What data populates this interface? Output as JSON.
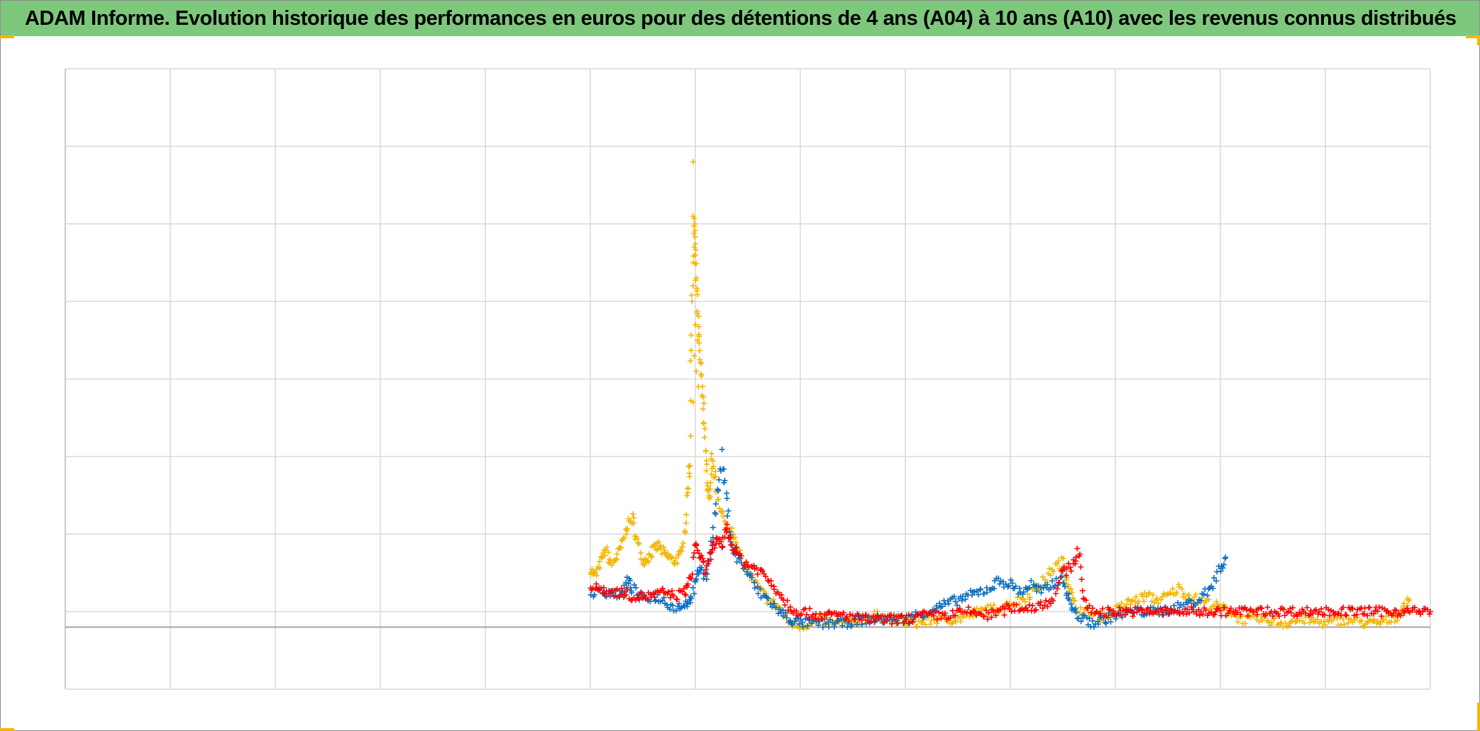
{
  "header": {
    "title": "ADAM Informe. Evolution historique des performances en euros pour des détentions de 4 ans (A04) à 10 ans (A10) avec les revenus connus distribués"
  },
  "chart_data": {
    "type": "scatter",
    "title": "ADAM Informe. Evolution historique des performances en euros pour des détentions de 4 ans (A04) à 10 ans (A10) avec les revenus connus distribués",
    "xlabel": "",
    "ylabel": "",
    "xlim": [
      0,
      13
    ],
    "ylim": [
      -0.8,
      7.2
    ],
    "grid": true,
    "legend": "none",
    "marker": "+",
    "colors": {
      "yellow": "#f2b705",
      "blue": "#0f6fbf",
      "red": "#ff0000"
    },
    "series": [
      {
        "color": "yellow",
        "points": [
          [
            5.0,
            0.75
          ],
          [
            5.05,
            0.65
          ],
          [
            5.1,
            0.85
          ],
          [
            5.15,
            1.0
          ],
          [
            5.2,
            0.8
          ],
          [
            5.25,
            0.9
          ],
          [
            5.3,
            1.05
          ],
          [
            5.35,
            1.3
          ],
          [
            5.4,
            1.4
          ],
          [
            5.45,
            1.1
          ],
          [
            5.5,
            0.85
          ],
          [
            5.55,
            0.9
          ],
          [
            5.6,
            1.0
          ],
          [
            5.65,
            1.05
          ],
          [
            5.7,
            0.95
          ],
          [
            5.75,
            0.9
          ],
          [
            5.8,
            0.85
          ],
          [
            5.85,
            0.9
          ],
          [
            5.9,
            1.2
          ],
          [
            5.93,
            1.8
          ],
          [
            5.95,
            2.2
          ],
          [
            5.97,
            4.3
          ],
          [
            5.99,
            5.3
          ],
          [
            6.0,
            4.7
          ],
          [
            6.02,
            4.1
          ],
          [
            6.04,
            3.6
          ],
          [
            6.06,
            3.2
          ],
          [
            6.08,
            2.8
          ],
          [
            6.1,
            2.2
          ],
          [
            6.12,
            1.8
          ],
          [
            6.14,
            1.6
          ],
          [
            6.16,
            2.2
          ],
          [
            6.2,
            1.8
          ],
          [
            6.25,
            1.5
          ],
          [
            6.3,
            1.2
          ],
          [
            6.35,
            1.3
          ],
          [
            6.4,
            1.0
          ],
          [
            6.5,
            0.7
          ],
          [
            6.6,
            0.5
          ],
          [
            6.7,
            0.35
          ],
          [
            6.8,
            0.25
          ],
          [
            6.9,
            0.05
          ],
          [
            7.0,
            0.02
          ],
          [
            7.1,
            0.05
          ],
          [
            7.2,
            0.1
          ],
          [
            7.3,
            0.05
          ],
          [
            7.5,
            0.05
          ],
          [
            7.7,
            0.15
          ],
          [
            7.9,
            0.1
          ],
          [
            8.1,
            0.05
          ],
          [
            8.3,
            0.1
          ],
          [
            8.5,
            0.1
          ],
          [
            8.7,
            0.2
          ],
          [
            8.9,
            0.25
          ],
          [
            9.1,
            0.35
          ],
          [
            9.3,
            0.55
          ],
          [
            9.4,
            0.75
          ],
          [
            9.5,
            0.85
          ],
          [
            9.55,
            0.6
          ],
          [
            9.6,
            0.3
          ],
          [
            9.7,
            0.2
          ],
          [
            9.8,
            0.15
          ],
          [
            9.9,
            0.15
          ],
          [
            10.0,
            0.2
          ],
          [
            10.1,
            0.3
          ],
          [
            10.2,
            0.35
          ],
          [
            10.3,
            0.4
          ],
          [
            10.4,
            0.35
          ],
          [
            10.5,
            0.4
          ],
          [
            10.6,
            0.5
          ],
          [
            10.7,
            0.4
          ],
          [
            10.8,
            0.35
          ],
          [
            10.9,
            0.3
          ],
          [
            11.0,
            0.25
          ],
          [
            11.1,
            0.2
          ],
          [
            11.2,
            0.1
          ],
          [
            11.4,
            0.1
          ],
          [
            11.6,
            0.05
          ],
          [
            11.8,
            0.1
          ],
          [
            12.0,
            0.05
          ],
          [
            12.2,
            0.1
          ],
          [
            12.4,
            0.05
          ],
          [
            12.5,
            0.05
          ],
          [
            12.6,
            0.1
          ],
          [
            12.7,
            0.15
          ],
          [
            12.75,
            0.25
          ],
          [
            12.8,
            0.35
          ]
        ]
      },
      {
        "color": "blue",
        "points": [
          [
            5.0,
            0.45
          ],
          [
            5.1,
            0.45
          ],
          [
            5.2,
            0.45
          ],
          [
            5.3,
            0.4
          ],
          [
            5.35,
            0.6
          ],
          [
            5.4,
            0.5
          ],
          [
            5.5,
            0.35
          ],
          [
            5.6,
            0.4
          ],
          [
            5.7,
            0.35
          ],
          [
            5.8,
            0.25
          ],
          [
            5.9,
            0.3
          ],
          [
            5.95,
            0.35
          ],
          [
            6.0,
            0.55
          ],
          [
            6.05,
            0.8
          ],
          [
            6.1,
            0.6
          ],
          [
            6.15,
            1.05
          ],
          [
            6.2,
            1.6
          ],
          [
            6.25,
            2.2
          ],
          [
            6.3,
            1.6
          ],
          [
            6.35,
            1.05
          ],
          [
            6.4,
            0.9
          ],
          [
            6.5,
            0.7
          ],
          [
            6.6,
            0.45
          ],
          [
            6.7,
            0.35
          ],
          [
            6.8,
            0.2
          ],
          [
            6.9,
            0.1
          ],
          [
            7.0,
            0.05
          ],
          [
            7.2,
            0.05
          ],
          [
            7.4,
            0.05
          ],
          [
            7.6,
            0.1
          ],
          [
            7.8,
            0.1
          ],
          [
            8.0,
            0.1
          ],
          [
            8.2,
            0.2
          ],
          [
            8.4,
            0.3
          ],
          [
            8.6,
            0.4
          ],
          [
            8.8,
            0.5
          ],
          [
            8.9,
            0.6
          ],
          [
            9.0,
            0.55
          ],
          [
            9.1,
            0.45
          ],
          [
            9.2,
            0.55
          ],
          [
            9.3,
            0.45
          ],
          [
            9.4,
            0.55
          ],
          [
            9.5,
            0.65
          ],
          [
            9.55,
            0.4
          ],
          [
            9.6,
            0.2
          ],
          [
            9.7,
            0.1
          ],
          [
            9.8,
            0.05
          ],
          [
            9.9,
            0.1
          ],
          [
            10.0,
            0.15
          ],
          [
            10.2,
            0.2
          ],
          [
            10.4,
            0.2
          ],
          [
            10.6,
            0.25
          ],
          [
            10.8,
            0.35
          ],
          [
            10.9,
            0.5
          ],
          [
            11.0,
            0.75
          ],
          [
            11.05,
            0.9
          ]
        ]
      },
      {
        "color": "red",
        "points": [
          [
            5.0,
            0.5
          ],
          [
            5.1,
            0.5
          ],
          [
            5.2,
            0.45
          ],
          [
            5.3,
            0.45
          ],
          [
            5.4,
            0.4
          ],
          [
            5.5,
            0.4
          ],
          [
            5.6,
            0.4
          ],
          [
            5.7,
            0.45
          ],
          [
            5.8,
            0.4
          ],
          [
            5.9,
            0.45
          ],
          [
            5.95,
            0.6
          ],
          [
            6.0,
            1.1
          ],
          [
            6.05,
            0.9
          ],
          [
            6.1,
            0.7
          ],
          [
            6.15,
            1.0
          ],
          [
            6.2,
            1.1
          ],
          [
            6.25,
            1.05
          ],
          [
            6.3,
            1.3
          ],
          [
            6.35,
            1.05
          ],
          [
            6.4,
            0.95
          ],
          [
            6.5,
            0.8
          ],
          [
            6.6,
            0.75
          ],
          [
            6.7,
            0.6
          ],
          [
            6.8,
            0.45
          ],
          [
            6.9,
            0.25
          ],
          [
            7.0,
            0.2
          ],
          [
            7.2,
            0.15
          ],
          [
            7.4,
            0.15
          ],
          [
            7.6,
            0.1
          ],
          [
            7.8,
            0.1
          ],
          [
            8.0,
            0.1
          ],
          [
            8.2,
            0.15
          ],
          [
            8.4,
            0.15
          ],
          [
            8.6,
            0.2
          ],
          [
            8.8,
            0.15
          ],
          [
            9.0,
            0.25
          ],
          [
            9.2,
            0.25
          ],
          [
            9.4,
            0.35
          ],
          [
            9.5,
            0.7
          ],
          [
            9.6,
            0.8
          ],
          [
            9.65,
            1.0
          ],
          [
            9.7,
            0.3
          ],
          [
            9.8,
            0.2
          ],
          [
            10.0,
            0.2
          ],
          [
            10.5,
            0.2
          ],
          [
            11.0,
            0.2
          ],
          [
            11.5,
            0.2
          ],
          [
            12.0,
            0.2
          ],
          [
            12.5,
            0.2
          ],
          [
            13.0,
            0.2
          ]
        ]
      }
    ]
  }
}
